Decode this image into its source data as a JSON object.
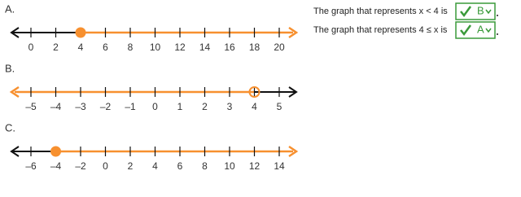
{
  "lines": [
    {
      "label": "A.",
      "ticks": [
        0,
        2,
        4,
        6,
        8,
        10,
        12,
        14,
        16,
        18,
        20
      ],
      "point": 4,
      "point_style": "closed",
      "direction": "right"
    },
    {
      "label": "B.",
      "ticks": [
        {
          "value": -5,
          "label": "–5"
        },
        {
          "value": -4,
          "label": "–4"
        },
        {
          "value": -3,
          "label": "–3"
        },
        {
          "value": -2,
          "label": "–2"
        },
        {
          "value": -1,
          "label": "–1"
        },
        0,
        1,
        2,
        3,
        4,
        5
      ],
      "point": 4,
      "point_style": "open",
      "direction": "left"
    },
    {
      "label": "C.",
      "ticks": [
        {
          "value": -6,
          "label": "–6"
        },
        {
          "value": -4,
          "label": "–4"
        },
        {
          "value": -2,
          "label": "–2"
        },
        0,
        2,
        4,
        6,
        8,
        10,
        12,
        14
      ],
      "point": -4,
      "point_style": "closed",
      "direction": "right"
    }
  ],
  "highlight_color": "#f7902f",
  "answers": [
    {
      "text": "The graph that represents x < 4 is",
      "selected": "B"
    },
    {
      "text": "The graph that represents 4 ≤ x is",
      "selected": "A"
    }
  ]
}
